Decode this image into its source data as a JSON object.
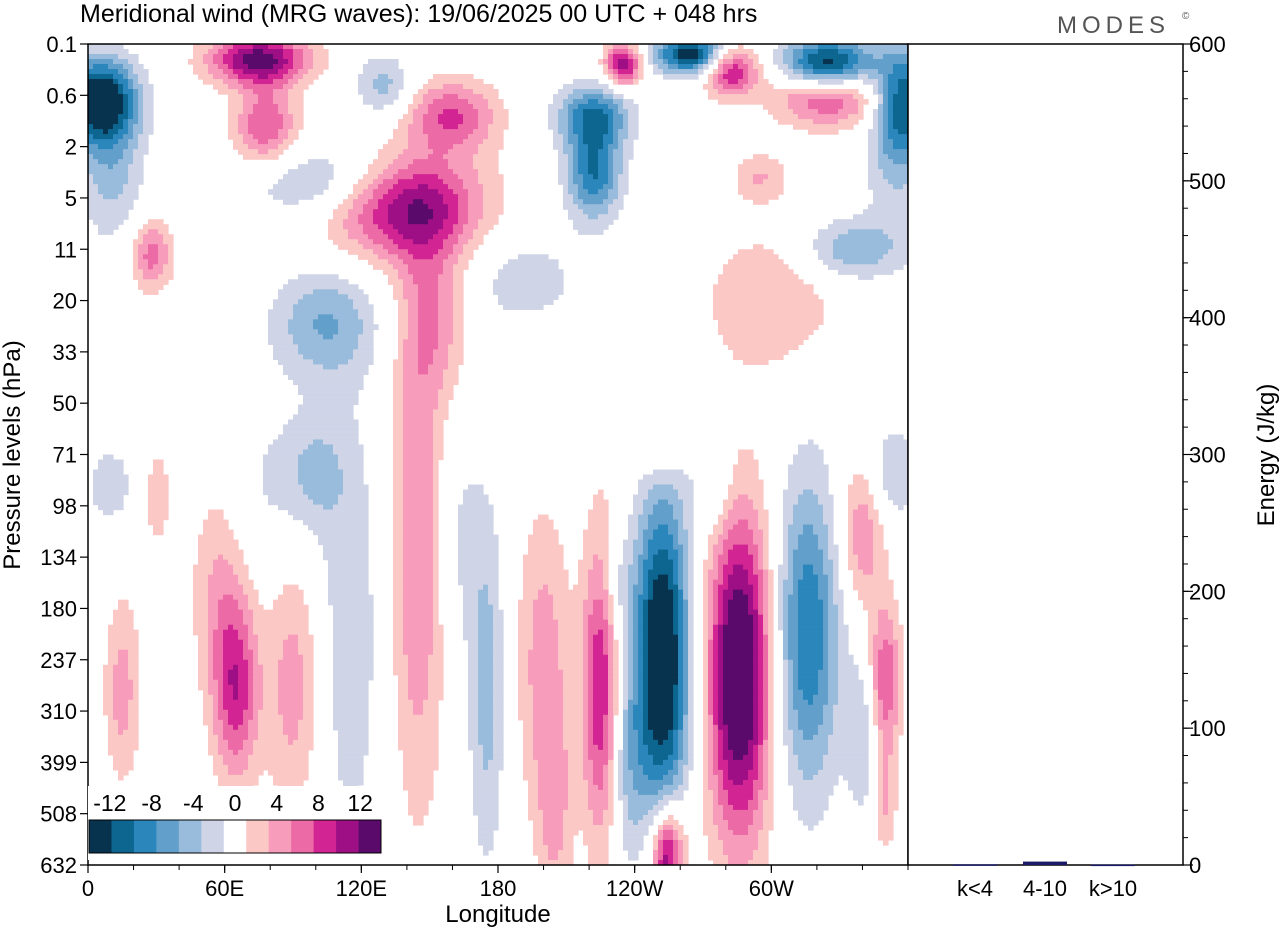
{
  "title": "Meridional wind (MRG waves):  19/06/2025  00 UTC  + 048 hrs",
  "brand": "MODES",
  "brand_mark": "©",
  "chart_data": [
    {
      "type": "heatmap",
      "xlabel": "Longitude",
      "ylabel": "Pressure levels (hPa)",
      "xticks": [
        "0",
        "60E",
        "120E",
        "180",
        "120W",
        "60W"
      ],
      "xtick_values": [
        0,
        60,
        120,
        180,
        240,
        300
      ],
      "xlim": [
        0,
        360
      ],
      "yticks": [
        "0.1",
        "0.6",
        "2",
        "5",
        "11",
        "20",
        "33",
        "50",
        "71",
        "98",
        "134",
        "180",
        "237",
        "310",
        "399",
        "508",
        "632"
      ],
      "colorbar": {
        "labels": [
          "-12",
          "-8",
          "-4",
          "0",
          "4",
          "8",
          "12"
        ],
        "label_values": [
          -12,
          -8,
          -4,
          0,
          4,
          8,
          12
        ],
        "levels": [
          -14,
          -12,
          -10,
          -8,
          -6,
          -4,
          -2,
          2,
          4,
          6,
          8,
          10,
          12,
          14
        ],
        "colors": [
          "#08334f",
          "#0d6690",
          "#2a86bb",
          "#62a0cb",
          "#99bcdc",
          "#cfd4e7",
          "#ffffff",
          "#fbc8c5",
          "#f79cba",
          "#ec6aa6",
          "#d22593",
          "#9e0f85",
          "#5a0a6b"
        ]
      },
      "features": [
        {
          "lon": 5,
          "lev": 1.1,
          "dlon": 16,
          "dlev": 0.8,
          "value": -15,
          "tilt": 0
        },
        {
          "lon": 28,
          "lev": 4.1,
          "dlon": 9,
          "dlev": 0.7,
          "value": 7,
          "tilt": 0
        },
        {
          "lon": 10,
          "lev": 2.4,
          "dlon": 14,
          "dlev": 1.4,
          "value": -5,
          "tilt": 0
        },
        {
          "lon": 75,
          "lev": 0.3,
          "dlon": 22,
          "dlev": 0.5,
          "value": 13,
          "tilt": 0
        },
        {
          "lon": 78,
          "lev": 1.6,
          "dlon": 14,
          "dlev": 0.8,
          "value": 8,
          "tilt": 0
        },
        {
          "lon": 140,
          "lev": 3.2,
          "dlon": 34,
          "dlev": 1.0,
          "value": 11,
          "tilt": -2.6
        },
        {
          "lon": 160,
          "lev": 1.4,
          "dlon": 20,
          "dlev": 0.7,
          "value": 8,
          "tilt": 0
        },
        {
          "lon": 153,
          "lev": 5.2,
          "dlon": 16,
          "dlev": 1.8,
          "value": 5,
          "tilt": 0
        },
        {
          "lon": 100,
          "lev": 2.7,
          "dlon": 30,
          "dlev": 0.7,
          "value": -5,
          "tilt": 0
        },
        {
          "lon": 104,
          "lev": 5.4,
          "dlon": 22,
          "dlev": 1.2,
          "value": -3,
          "tilt": 0
        },
        {
          "lon": 130,
          "lev": 0.8,
          "dlon": 12,
          "dlev": 0.6,
          "value": -5,
          "tilt": 0
        },
        {
          "lon": 222,
          "lev": 1.4,
          "dlon": 16,
          "dlev": 0.6,
          "value": -9,
          "tilt": 0
        },
        {
          "lon": 222,
          "lev": 2.5,
          "dlon": 12,
          "dlev": 0.9,
          "value": -10,
          "tilt": 0
        },
        {
          "lon": 235,
          "lev": 0.4,
          "dlon": 8,
          "dlev": 0.4,
          "value": 12,
          "tilt": 0
        },
        {
          "lon": 265,
          "lev": 0.2,
          "dlon": 16,
          "dlev": 0.4,
          "value": -14,
          "tilt": 0
        },
        {
          "lon": 282,
          "lev": 0.5,
          "dlon": 12,
          "dlev": 0.5,
          "value": 11,
          "tilt": 0
        },
        {
          "lon": 325,
          "lev": 0.4,
          "dlon": 20,
          "dlev": 0.5,
          "value": -15,
          "tilt": 0
        },
        {
          "lon": 325,
          "lev": 1.0,
          "dlon": 24,
          "dlev": 0.6,
          "value": 9,
          "tilt": 0
        },
        {
          "lon": 358,
          "lev": 1.1,
          "dlon": 12,
          "dlev": 1.0,
          "value": -11,
          "tilt": 0
        },
        {
          "lon": 355,
          "lev": 2.3,
          "dlon": 14,
          "dlev": 1.4,
          "value": -4,
          "tilt": 0
        },
        {
          "lon": 295,
          "lev": 2.6,
          "dlon": 12,
          "dlev": 0.5,
          "value": 4,
          "tilt": 0
        },
        {
          "lon": 300,
          "lev": 5.0,
          "dlon": 30,
          "dlev": 1.4,
          "value": 4,
          "tilt": 0
        },
        {
          "lon": 335,
          "lev": 4.0,
          "dlon": 22,
          "dlev": 0.6,
          "value": -6,
          "tilt": 0
        },
        {
          "lon": 190,
          "lev": 4.6,
          "dlon": 30,
          "dlev": 1.0,
          "value": -3,
          "tilt": 0
        },
        {
          "lon": 103,
          "lev": 5.5,
          "dlon": 24,
          "dlev": 1.0,
          "value": -3,
          "tilt": 0
        },
        {
          "lon": 250,
          "lev": 7.9,
          "dlon": 12,
          "dlev": 0.6,
          "value": 3,
          "tilt": 0
        },
        {
          "lon": 250,
          "lev": 7.9,
          "dlon": 10,
          "dlev": 0.5,
          "value": 0,
          "tilt": 0
        },
        {
          "lon": 85,
          "lev": 8.6,
          "dlon": 24,
          "dlev": 1.6,
          "value": -2.5,
          "tilt": 0
        },
        {
          "lon": 100,
          "lev": 8.3,
          "dlon": 12,
          "dlev": 1.0,
          "value": -3,
          "tilt": 0
        },
        {
          "lon": 115,
          "lev": 11.5,
          "dlon": 14,
          "dlev": 4.5,
          "value": -3.5,
          "tilt": 0
        },
        {
          "lon": 90,
          "lev": 12.5,
          "dlon": 12,
          "dlev": 2.5,
          "value": 5,
          "tilt": 0
        },
        {
          "lon": 65,
          "lev": 12.6,
          "dlon": 10,
          "dlev": 1.8,
          "value": 9,
          "tilt": 0
        },
        {
          "lon": 57,
          "lev": 10.6,
          "dlon": 12,
          "dlev": 2.2,
          "value": 4,
          "tilt": 0
        },
        {
          "lon": 15,
          "lev": 12.6,
          "dlon": 8,
          "dlev": 1.8,
          "value": 5,
          "tilt": 0
        },
        {
          "lon": 30,
          "lev": 8.8,
          "dlon": 10,
          "dlev": 1.6,
          "value": 2.5,
          "tilt": 0
        },
        {
          "lon": 145,
          "lev": 10.0,
          "dlon": 12,
          "dlev": 5.0,
          "value": 6,
          "tilt": 0
        },
        {
          "lon": 175,
          "lev": 12.5,
          "dlon": 8,
          "dlev": 3.5,
          "value": -5,
          "tilt": 0
        },
        {
          "lon": 162,
          "lev": 9.5,
          "dlon": 10,
          "dlev": 2.5,
          "value": -2.5,
          "tilt": 0
        },
        {
          "lon": 200,
          "lev": 12.0,
          "dlon": 12,
          "dlev": 3.0,
          "value": 5,
          "tilt": 0
        },
        {
          "lon": 205,
          "lev": 15.0,
          "dlon": 8,
          "dlev": 2.0,
          "value": 4,
          "tilt": 0
        },
        {
          "lon": 225,
          "lev": 12.5,
          "dlon": 8,
          "dlev": 3.0,
          "value": 10,
          "tilt": 0
        },
        {
          "lon": 237,
          "lev": 14.0,
          "dlon": 8,
          "dlev": 2.0,
          "value": -4,
          "tilt": 0
        },
        {
          "lon": 252,
          "lev": 12.0,
          "dlon": 12,
          "dlev": 3.2,
          "value": -16,
          "tilt": 0
        },
        {
          "lon": 286,
          "lev": 12.3,
          "dlon": 14,
          "dlev": 3.2,
          "value": 16,
          "tilt": 0
        },
        {
          "lon": 316,
          "lev": 11.5,
          "dlon": 14,
          "dlev": 3.0,
          "value": -10,
          "tilt": 0
        },
        {
          "lon": 340,
          "lev": 9.5,
          "dlon": 10,
          "dlev": 1.4,
          "value": 6,
          "tilt": 0
        },
        {
          "lon": 350,
          "lev": 12.4,
          "dlon": 7,
          "dlev": 1.5,
          "value": 8,
          "tilt": 0
        },
        {
          "lon": 340,
          "lev": 13.5,
          "dlon": 7,
          "dlev": 1.5,
          "value": -4,
          "tilt": 0
        },
        {
          "lon": 350,
          "lev": 14.8,
          "dlon": 5,
          "dlev": 1.0,
          "value": 4,
          "tilt": 0
        },
        {
          "lon": 255,
          "lev": 15.8,
          "dlon": 10,
          "dlev": 1.2,
          "value": 6,
          "tilt": 0
        },
        {
          "lon": 254,
          "lev": 15.8,
          "dlon": 6,
          "dlev": 0.9,
          "value": 8,
          "tilt": 0
        },
        {
          "lon": 353,
          "lev": 8.4,
          "dlon": 12,
          "dlev": 1.0,
          "value": -4,
          "tilt": 0
        },
        {
          "lon": 275,
          "lev": 8.6,
          "dlon": 10,
          "dlev": 1.0,
          "value": -3,
          "tilt": 0
        },
        {
          "lon": 10,
          "lev": 8.6,
          "dlon": 10,
          "dlev": 0.7,
          "value": -4,
          "tilt": 0
        },
        {
          "lon": 232,
          "lev": 10.6,
          "dlon": 8,
          "dlev": 1.0,
          "value": -3,
          "tilt": 0
        }
      ]
    },
    {
      "type": "bar",
      "categories": [
        "k<4",
        "4-10",
        "k>10"
      ],
      "values": [
        0.5,
        2.5,
        0.3
      ],
      "ylabel": "Energy (J/kg)",
      "ylim": [
        0,
        600
      ],
      "yticks": [
        0,
        100,
        200,
        300,
        400,
        500,
        600
      ],
      "bar_color": "#1a1a66"
    }
  ]
}
